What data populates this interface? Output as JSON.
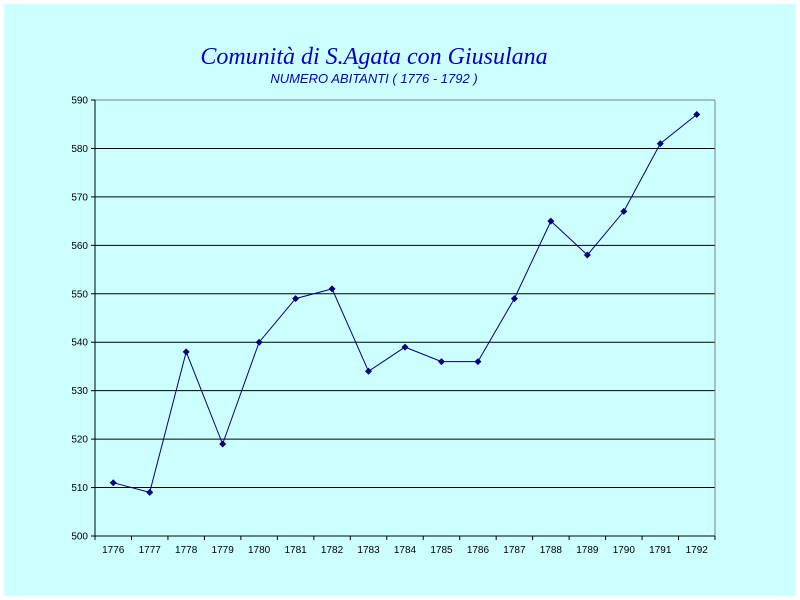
{
  "chart_data": {
    "type": "line",
    "title": "Comunità di S.Agata con Giusulana",
    "subtitle": "NUMERO ABITANTI ( 1776 - 1792 )",
    "xlabel": "",
    "ylabel": "",
    "categories": [
      "1776",
      "1777",
      "1778",
      "1779",
      "1780",
      "1781",
      "1782",
      "1783",
      "1784",
      "1785",
      "1786",
      "1787",
      "1788",
      "1789",
      "1790",
      "1791",
      "1792"
    ],
    "series": [
      {
        "values": [
          511,
          509,
          538,
          519,
          540,
          549,
          551,
          534,
          539,
          536,
          536,
          549,
          565,
          558,
          567,
          581,
          587
        ]
      }
    ],
    "ylim": [
      500,
      590
    ],
    "yticks": [
      500,
      510,
      520,
      530,
      540,
      550,
      560,
      570,
      580,
      590
    ],
    "grid": "horizontal",
    "legend": "none",
    "colors": {
      "background": "#ccffff",
      "plot_background": "#ccffff",
      "line": "#000080",
      "marker": "#000080",
      "gridline": "#000000",
      "title": "#0000cc"
    }
  }
}
